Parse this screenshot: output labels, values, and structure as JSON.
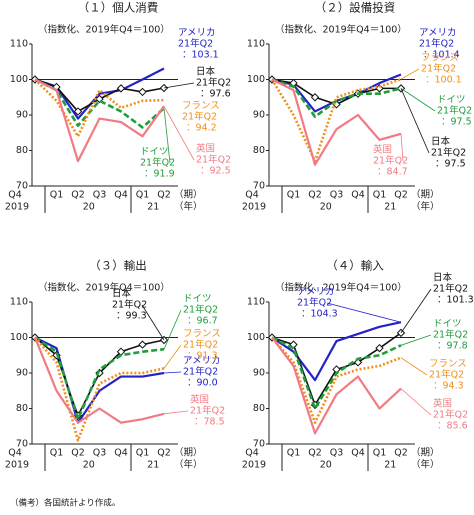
{
  "chart_data": [
    {
      "type": "line",
      "title": "（１）個人消費",
      "subtitle": "（指数化、2019年Q4＝100）",
      "categories": [
        "Q4",
        "Q1",
        "Q2",
        "Q3",
        "Q4",
        "Q1",
        "Q2"
      ],
      "year_labels": [
        "2019",
        "20",
        "21"
      ],
      "x_unit": "（期）",
      "year_unit": "（年）",
      "period_label": "21年Q2",
      "ylim": [
        70,
        110
      ],
      "yticks": [
        70,
        80,
        90,
        100,
        110
      ],
      "reference_line": 100,
      "series": [
        {
          "name": "アメリカ",
          "color": "#2323c8",
          "values": [
            100,
            98,
            89,
            96,
            97,
            100,
            103.1
          ],
          "value_labels": [
            null,
            null,
            null,
            null,
            null,
            null,
            "：103.1"
          ]
        },
        {
          "name": "日本",
          "color": "#111111",
          "values": [
            100,
            97.9,
            91,
            94.5,
            97.5,
            96.5,
            97.6
          ],
          "value_labels": [
            null,
            null,
            null,
            null,
            null,
            null,
            "：97.6"
          ]
        },
        {
          "name": "ドイツ",
          "color": "#1f9e3a",
          "values": [
            100,
            97,
            87,
            94,
            91,
            86.5,
            91.9
          ],
          "value_labels": [
            null,
            null,
            null,
            null,
            null,
            null,
            "：91.9"
          ]
        },
        {
          "name": "フランス",
          "color": "#f0901a",
          "values": [
            100,
            94,
            84,
            97,
            92,
            94,
            94.2
          ],
          "value_labels": [
            null,
            null,
            null,
            null,
            null,
            null,
            "：94.2"
          ]
        },
        {
          "name": "英国",
          "color": "#f27a82",
          "values": [
            100,
            97,
            77,
            89,
            88,
            84,
            92.5
          ],
          "value_labels": [
            null,
            null,
            null,
            null,
            null,
            null,
            "：92.5"
          ]
        }
      ]
    },
    {
      "type": "line",
      "title": "（２）設備投資",
      "subtitle": "（指数化、2019年Q4＝100）",
      "categories": [
        "Q4",
        "Q1",
        "Q2",
        "Q3",
        "Q4",
        "Q1",
        "Q2"
      ],
      "year_labels": [
        "2019",
        "20",
        "21"
      ],
      "x_unit": "（期）",
      "year_unit": "（年）",
      "period_label": "21年Q2",
      "ylim": [
        70,
        110
      ],
      "yticks": [
        70,
        80,
        90,
        100,
        110
      ],
      "reference_line": 100,
      "series": [
        {
          "name": "アメリカ",
          "color": "#2323c8",
          "values": [
            100,
            98.5,
            91,
            94,
            96,
            99,
            101.4
          ],
          "value_labels": [
            null,
            null,
            null,
            null,
            null,
            null,
            "：101.4"
          ]
        },
        {
          "name": "日本",
          "color": "#111111",
          "values": [
            100,
            99,
            95,
            93,
            96,
            97.5,
            97.5
          ],
          "value_labels": [
            null,
            null,
            null,
            null,
            null,
            null,
            "：97.5"
          ]
        },
        {
          "name": "ドイツ",
          "color": "#1f9e3a",
          "values": [
            100,
            98,
            89.5,
            94,
            96,
            96,
            97.5
          ],
          "value_labels": [
            null,
            null,
            null,
            null,
            null,
            null,
            "：97.5"
          ]
        },
        {
          "name": "フランス",
          "color": "#f0901a",
          "values": [
            100,
            90,
            77,
            95,
            97,
            98,
            100.1
          ],
          "value_labels": [
            null,
            null,
            null,
            null,
            null,
            null,
            "：100.1"
          ]
        },
        {
          "name": "英国",
          "color": "#f27a82",
          "values": [
            100,
            97,
            76,
            86,
            90,
            83,
            84.7
          ],
          "value_labels": [
            null,
            null,
            null,
            null,
            null,
            null,
            "：84.7"
          ]
        }
      ]
    },
    {
      "type": "line",
      "title": "（３）輸出",
      "subtitle": "（指数化、2019年Q4＝100）",
      "categories": [
        "Q4",
        "Q1",
        "Q2",
        "Q3",
        "Q4",
        "Q1",
        "Q2"
      ],
      "year_labels": [
        "2019",
        "20",
        "21"
      ],
      "x_unit": "（期）",
      "year_unit": "（年）",
      "period_label": "21年Q2",
      "ylim": [
        70,
        110
      ],
      "yticks": [
        70,
        80,
        90,
        100,
        110
      ],
      "reference_line": 100,
      "series": [
        {
          "name": "アメリカ",
          "color": "#2323c8",
          "values": [
            100,
            97,
            76,
            85,
            89,
            89,
            90.0
          ],
          "value_labels": [
            null,
            null,
            null,
            null,
            null,
            null,
            "：90.0"
          ]
        },
        {
          "name": "日本",
          "color": "#111111",
          "values": [
            100,
            95,
            78,
            90,
            96,
            98,
            99.3
          ],
          "value_labels": [
            null,
            null,
            null,
            null,
            null,
            null,
            "：99.3"
          ]
        },
        {
          "name": "ドイツ",
          "color": "#1f9e3a",
          "values": [
            100,
            96,
            77,
            91,
            95,
            96,
            96.7
          ],
          "value_labels": [
            null,
            null,
            null,
            null,
            null,
            null,
            "：96.7"
          ]
        },
        {
          "name": "フランス",
          "color": "#f0901a",
          "values": [
            100,
            93,
            71,
            87,
            90,
            90,
            91.3
          ],
          "value_labels": [
            null,
            null,
            null,
            null,
            null,
            null,
            "：91.3"
          ]
        },
        {
          "name": "英国",
          "color": "#f27a82",
          "values": [
            100,
            85,
            76,
            80,
            76,
            77,
            78.5
          ],
          "value_labels": [
            null,
            null,
            null,
            null,
            null,
            null,
            "：78.5"
          ]
        }
      ]
    },
    {
      "type": "line",
      "title": "（４）輸入",
      "subtitle": "（指数化、2019年Q4＝100）",
      "categories": [
        "Q4",
        "Q1",
        "Q2",
        "Q3",
        "Q4",
        "Q1",
        "Q2"
      ],
      "year_labels": [
        "2019",
        "20",
        "21"
      ],
      "x_unit": "（期）",
      "year_unit": "（年）",
      "period_label": "21年Q2",
      "ylim": [
        70,
        110
      ],
      "yticks": [
        70,
        80,
        90,
        100,
        110
      ],
      "reference_line": 100,
      "series": [
        {
          "name": "アメリカ",
          "color": "#2323c8",
          "values": [
            100,
            96,
            88,
            99,
            101,
            103,
            104.3
          ],
          "value_labels": [
            null,
            null,
            null,
            null,
            null,
            null,
            "：104.3"
          ]
        },
        {
          "name": "日本",
          "color": "#111111",
          "values": [
            100,
            98,
            81,
            91,
            93,
            97,
            101.3
          ],
          "value_labels": [
            null,
            null,
            null,
            null,
            null,
            null,
            "：101.3"
          ]
        },
        {
          "name": "ドイツ",
          "color": "#1f9e3a",
          "values": [
            100,
            97,
            80,
            90,
            94,
            95,
            97.8
          ],
          "value_labels": [
            null,
            null,
            null,
            null,
            null,
            null,
            "：97.8"
          ]
        },
        {
          "name": "フランス",
          "color": "#f0901a",
          "values": [
            100,
            93,
            76,
            89,
            91,
            92,
            94.3
          ],
          "value_labels": [
            null,
            null,
            null,
            null,
            null,
            null,
            "：94.3"
          ]
        },
        {
          "name": "英国",
          "color": "#f27a82",
          "values": [
            100,
            92,
            73,
            84,
            89,
            80,
            85.6
          ],
          "value_labels": [
            null,
            null,
            null,
            null,
            null,
            null,
            "：85.6"
          ]
        }
      ]
    }
  ],
  "footnote": "（備考）各国統計より作成。"
}
